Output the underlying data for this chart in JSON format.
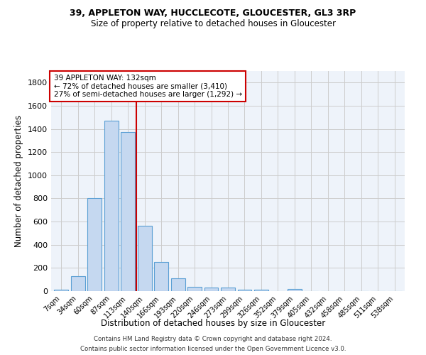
{
  "title1": "39, APPLETON WAY, HUCCLECOTE, GLOUCESTER, GL3 3RP",
  "title2": "Size of property relative to detached houses in Gloucester",
  "xlabel": "Distribution of detached houses by size in Gloucester",
  "ylabel": "Number of detached properties",
  "bar_labels": [
    "7sqm",
    "34sqm",
    "60sqm",
    "87sqm",
    "113sqm",
    "140sqm",
    "166sqm",
    "193sqm",
    "220sqm",
    "246sqm",
    "273sqm",
    "299sqm",
    "326sqm",
    "352sqm",
    "379sqm",
    "405sqm",
    "432sqm",
    "458sqm",
    "485sqm",
    "511sqm",
    "538sqm"
  ],
  "bar_heights": [
    15,
    130,
    800,
    1470,
    1370,
    565,
    250,
    110,
    35,
    30,
    30,
    15,
    15,
    0,
    20,
    0,
    0,
    0,
    0,
    0,
    0
  ],
  "bar_color": "#c5d8f0",
  "bar_edge_color": "#5a9fd4",
  "grid_color": "#cccccc",
  "bg_color": "#eef3fa",
  "annotation_text": "39 APPLETON WAY: 132sqm\n← 72% of detached houses are smaller (3,410)\n27% of semi-detached houses are larger (1,292) →",
  "vline_x": 4.5,
  "vline_color": "#cc0000",
  "annotation_box_color": "#cc0000",
  "ylim": [
    0,
    1900
  ],
  "yticks": [
    0,
    200,
    400,
    600,
    800,
    1000,
    1200,
    1400,
    1600,
    1800
  ],
  "footer1": "Contains HM Land Registry data © Crown copyright and database right 2024.",
  "footer2": "Contains public sector information licensed under the Open Government Licence v3.0."
}
